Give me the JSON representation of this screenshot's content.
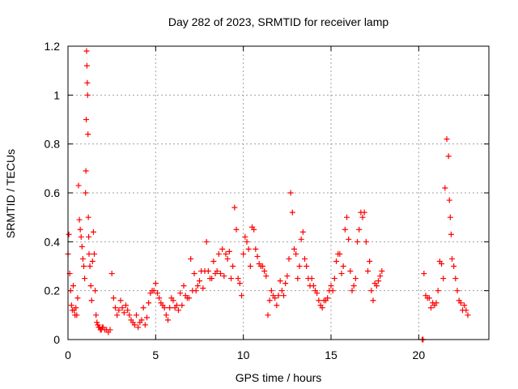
{
  "chart_data": {
    "type": "scatter",
    "title": "Day 282 of 2023, SRMTID for receiver lamp",
    "xlabel": "GPS time / hours",
    "ylabel": "SRMTID / TECUs",
    "xlim": [
      0,
      24
    ],
    "ylim": [
      0,
      1.2
    ],
    "xticks": [
      0,
      5,
      10,
      15,
      20
    ],
    "xtick_labels": [
      "0",
      "5",
      "10",
      "15",
      "20"
    ],
    "yticks": [
      0,
      0.2,
      0.4,
      0.6,
      0.8,
      1.0,
      1.2
    ],
    "ytick_labels": [
      "0",
      "0.2",
      "0.4",
      "0.6",
      "0.8",
      "1",
      "1.2"
    ],
    "grid": true,
    "marker": "+",
    "color": "#ff0000",
    "series": [
      {
        "name": "SRMTID",
        "x": [
          0.0,
          0.05,
          0.1,
          0.15,
          0.2,
          0.25,
          0.3,
          0.35,
          0.4,
          0.45,
          0.5,
          0.55,
          0.6,
          0.65,
          0.7,
          0.75,
          0.8,
          0.85,
          0.9,
          0.95,
          1.0,
          1.02,
          1.04,
          1.06,
          1.08,
          1.1,
          1.12,
          1.14,
          1.16,
          1.18,
          1.2,
          1.25,
          1.3,
          1.35,
          1.4,
          1.45,
          1.5,
          1.55,
          1.6,
          1.65,
          1.7,
          1.75,
          1.8,
          1.85,
          1.9,
          1.95,
          2.0,
          2.1,
          2.2,
          2.3,
          2.4,
          2.5,
          2.6,
          2.7,
          2.8,
          2.9,
          3.0,
          3.1,
          3.2,
          3.3,
          3.4,
          3.5,
          3.6,
          3.7,
          3.8,
          3.9,
          4.0,
          4.1,
          4.2,
          4.3,
          4.4,
          4.5,
          4.6,
          4.7,
          4.8,
          4.9,
          5.0,
          5.1,
          5.2,
          5.3,
          5.4,
          5.5,
          5.6,
          5.7,
          5.8,
          5.9,
          6.0,
          6.1,
          6.2,
          6.3,
          6.4,
          6.5,
          6.6,
          6.7,
          6.8,
          6.9,
          7.0,
          7.1,
          7.2,
          7.3,
          7.4,
          7.5,
          7.6,
          7.7,
          7.8,
          7.9,
          8.0,
          8.1,
          8.2,
          8.3,
          8.4,
          8.5,
          8.6,
          8.7,
          8.8,
          8.9,
          9.0,
          9.1,
          9.2,
          9.3,
          9.4,
          9.5,
          9.6,
          9.7,
          9.8,
          9.9,
          10.0,
          10.1,
          10.2,
          10.3,
          10.4,
          10.5,
          10.6,
          10.7,
          10.8,
          10.9,
          11.0,
          11.1,
          11.2,
          11.3,
          11.4,
          11.5,
          11.6,
          11.7,
          11.8,
          11.9,
          12.0,
          12.1,
          12.2,
          12.3,
          12.4,
          12.5,
          12.6,
          12.7,
          12.8,
          12.9,
          13.0,
          13.1,
          13.2,
          13.3,
          13.4,
          13.5,
          13.6,
          13.7,
          13.8,
          13.9,
          14.0,
          14.1,
          14.2,
          14.3,
          14.4,
          14.5,
          14.6,
          14.7,
          14.8,
          14.9,
          15.0,
          15.1,
          15.2,
          15.3,
          15.4,
          15.5,
          15.6,
          15.7,
          15.8,
          15.9,
          16.0,
          16.1,
          16.2,
          16.3,
          16.4,
          16.5,
          16.6,
          16.7,
          16.8,
          16.9,
          17.0,
          17.1,
          17.2,
          17.3,
          17.4,
          17.5,
          17.6,
          17.7,
          17.8,
          17.9,
          20.2,
          20.25,
          20.3,
          20.4,
          20.5,
          20.6,
          20.7,
          20.8,
          20.9,
          21.0,
          21.1,
          21.2,
          21.3,
          21.4,
          21.5,
          21.6,
          21.7,
          21.75,
          21.8,
          21.85,
          21.9,
          22.0,
          22.1,
          22.2,
          22.3,
          22.4,
          22.5,
          22.6,
          22.7,
          22.8
        ],
        "y": [
          0.35,
          0.43,
          0.27,
          0.2,
          0.14,
          0.12,
          0.22,
          0.12,
          0.1,
          0.13,
          0.1,
          0.17,
          0.63,
          0.49,
          0.45,
          0.42,
          0.38,
          0.33,
          0.3,
          0.25,
          0.6,
          0.69,
          0.9,
          1.18,
          1.12,
          1.05,
          1.0,
          0.84,
          0.5,
          0.42,
          0.35,
          0.3,
          0.22,
          0.16,
          0.32,
          0.44,
          0.35,
          0.2,
          0.1,
          0.07,
          0.06,
          0.05,
          0.05,
          0.04,
          0.04,
          0.05,
          0.05,
          0.04,
          0.04,
          0.03,
          0.04,
          0.27,
          0.17,
          0.13,
          0.1,
          0.12,
          0.16,
          0.13,
          0.11,
          0.14,
          0.12,
          0.1,
          0.08,
          0.07,
          0.06,
          0.1,
          0.05,
          0.07,
          0.08,
          0.13,
          0.06,
          0.09,
          0.15,
          0.19,
          0.2,
          0.2,
          0.23,
          0.19,
          0.17,
          0.15,
          0.14,
          0.13,
          0.1,
          0.08,
          0.13,
          0.17,
          0.16,
          0.13,
          0.14,
          0.12,
          0.19,
          0.14,
          0.22,
          0.18,
          0.17,
          0.17,
          0.33,
          0.2,
          0.27,
          0.2,
          0.22,
          0.24,
          0.28,
          0.21,
          0.28,
          0.4,
          0.28,
          0.25,
          0.25,
          0.32,
          0.27,
          0.28,
          0.35,
          0.27,
          0.37,
          0.26,
          0.35,
          0.33,
          0.36,
          0.25,
          0.3,
          0.54,
          0.45,
          0.25,
          0.23,
          0.18,
          0.35,
          0.42,
          0.4,
          0.37,
          0.3,
          0.46,
          0.45,
          0.37,
          0.34,
          0.31,
          0.3,
          0.3,
          0.28,
          0.26,
          0.1,
          0.16,
          0.2,
          0.18,
          0.17,
          0.14,
          0.18,
          0.24,
          0.2,
          0.18,
          0.23,
          0.26,
          0.33,
          0.6,
          0.52,
          0.37,
          0.35,
          0.25,
          0.3,
          0.41,
          0.44,
          0.33,
          0.3,
          0.25,
          0.22,
          0.25,
          0.22,
          0.2,
          0.19,
          0.16,
          0.14,
          0.13,
          0.16,
          0.16,
          0.17,
          0.2,
          0.22,
          0.2,
          0.25,
          0.32,
          0.35,
          0.35,
          0.27,
          0.3,
          0.45,
          0.5,
          0.41,
          0.28,
          0.2,
          0.22,
          0.25,
          0.4,
          0.45,
          0.52,
          0.5,
          0.52,
          0.4,
          0.28,
          0.32,
          0.2,
          0.16,
          0.23,
          0.22,
          0.24,
          0.26,
          0.28,
          0.0,
          0.0,
          0.27,
          0.18,
          0.17,
          0.17,
          0.13,
          0.15,
          0.14,
          0.15,
          0.2,
          0.32,
          0.31,
          0.25,
          0.62,
          0.82,
          0.75,
          0.57,
          0.5,
          0.43,
          0.33,
          0.3,
          0.25,
          0.2,
          0.16,
          0.15,
          0.12,
          0.14,
          0.12,
          0.1
        ]
      }
    ]
  }
}
